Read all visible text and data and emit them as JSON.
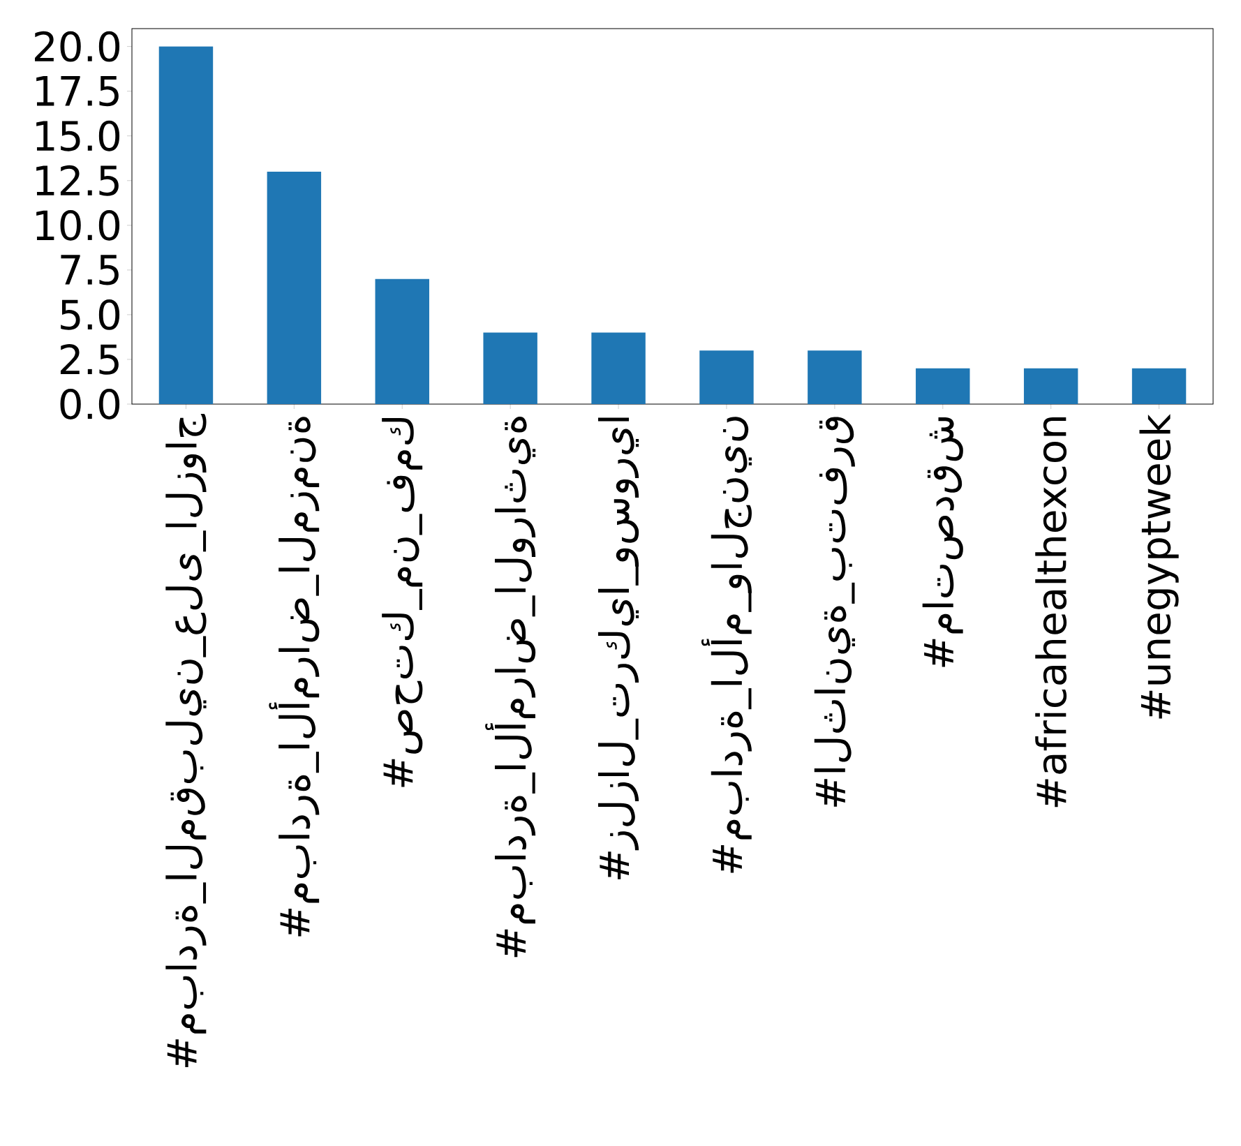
{
  "chart_data": {
    "type": "bar",
    "categories": [
      "#مبادرة_المقبلين_على_الزواج",
      "#مبادرة_الأمراض_المزمنة",
      "#صحتك_من_فمك",
      "#مبادرة_الأمراض_الوراثية",
      "#زلزال_تركيا_وسوريا",
      "#مبادرة_الأم_والجنين",
      "#الثانية_بتفرق",
      "#ماتصدقش",
      "#africahealthexcon",
      "#unegyptweek"
    ],
    "values": [
      20,
      13,
      7,
      4,
      4,
      3,
      3,
      2,
      2,
      2
    ],
    "color": "#1f77b4",
    "ylim": [
      0,
      21
    ],
    "yticks": [
      {
        "value": 0,
        "label": "0.0"
      },
      {
        "value": 2.5,
        "label": "2.5"
      },
      {
        "value": 5,
        "label": "5.0"
      },
      {
        "value": 7.5,
        "label": "7.5"
      },
      {
        "value": 10,
        "label": "10.0"
      },
      {
        "value": 12.5,
        "label": "12.5"
      },
      {
        "value": 15,
        "label": "15.0"
      },
      {
        "value": 17.5,
        "label": "17.5"
      },
      {
        "value": 20,
        "label": "20.0"
      }
    ],
    "grid": false
  }
}
